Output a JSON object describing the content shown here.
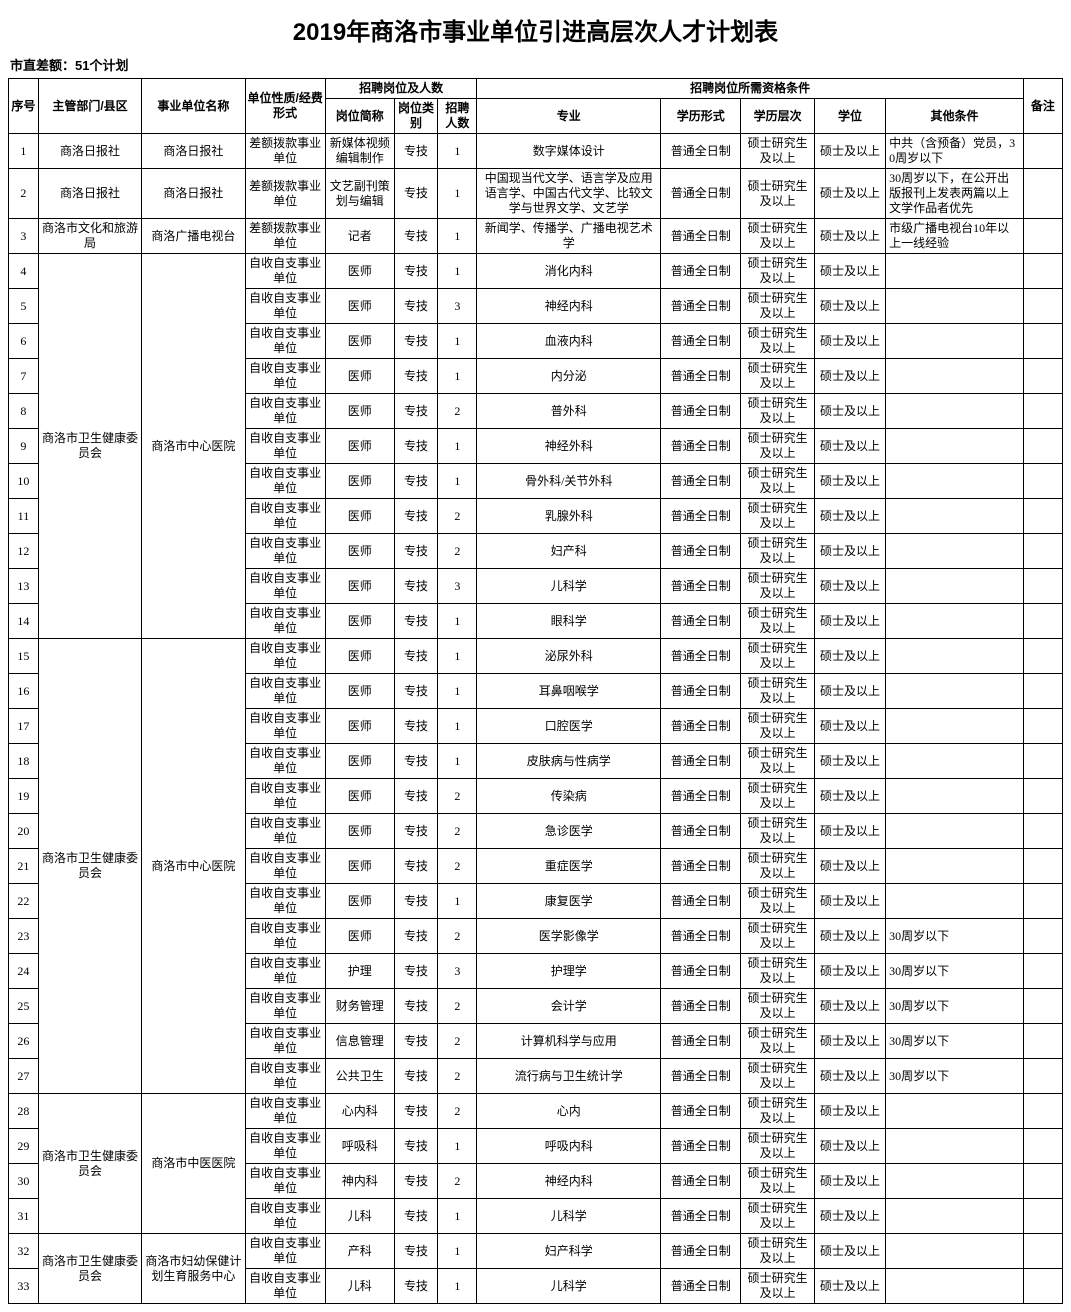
{
  "title": "2019年商洛市事业单位引进高层次人才计划表",
  "subtitle": "市直差额：51个计划",
  "headers": {
    "seq": "序号",
    "dept": "主管部门/县区",
    "org": "事业单位名称",
    "nature": "单位性质/经费形式",
    "pos_group": "招聘岗位及人数",
    "pos_name": "岗位简称",
    "pos_type": "岗位类别",
    "count": "招聘人数",
    "req_group": "招聘岗位所需资格条件",
    "major": "专业",
    "edu_form": "学历形式",
    "edu_level": "学历层次",
    "degree": "学位",
    "other": "其他条件",
    "note": "备注"
  },
  "groups": [
    {
      "dept": "商洛日报社",
      "org": "商洛日报社",
      "rows": [
        {
          "seq": 1,
          "nature": "差额拨款事业单位",
          "pos": "新媒体视频编辑制作",
          "ptype": "专技",
          "count": 1,
          "major": "数字媒体设计",
          "form": "普通全日制",
          "level": "硕士研究生及以上",
          "degree": "硕士及以上",
          "other": "中共（含预备）党员，30周岁以下"
        }
      ]
    },
    {
      "dept": "商洛日报社",
      "org": "商洛日报社",
      "rows": [
        {
          "seq": 2,
          "nature": "差额拨款事业单位",
          "pos": "文艺副刊策划与编辑",
          "ptype": "专技",
          "count": 1,
          "major": "中国现当代文学、语言学及应用语言学、中国古代文学、比较文学与世界文学、文艺学",
          "form": "普通全日制",
          "level": "硕士研究生及以上",
          "degree": "硕士及以上",
          "other": "30周岁以下，在公开出版报刊上发表两篇以上文学作品者优先"
        }
      ]
    },
    {
      "dept": "商洛市文化和旅游局",
      "org": "商洛广播电视台",
      "rows": [
        {
          "seq": 3,
          "nature": "差额拨款事业单位",
          "pos": "记者",
          "ptype": "专技",
          "count": 1,
          "major": "新闻学、传播学、广播电视艺术学",
          "form": "普通全日制",
          "level": "硕士研究生及以上",
          "degree": "硕士及以上",
          "other": "市级广播电视台10年以上一线经验"
        }
      ]
    },
    {
      "dept": "商洛市卫生健康委员会",
      "org": "商洛市中心医院",
      "rows": [
        {
          "seq": 4,
          "nature": "自收自支事业单位",
          "pos": "医师",
          "ptype": "专技",
          "count": 1,
          "major": "消化内科",
          "form": "普通全日制",
          "level": "硕士研究生及以上",
          "degree": "硕士及以上",
          "other": ""
        },
        {
          "seq": 5,
          "nature": "自收自支事业单位",
          "pos": "医师",
          "ptype": "专技",
          "count": 3,
          "major": "神经内科",
          "form": "普通全日制",
          "level": "硕士研究生及以上",
          "degree": "硕士及以上",
          "other": ""
        },
        {
          "seq": 6,
          "nature": "自收自支事业单位",
          "pos": "医师",
          "ptype": "专技",
          "count": 1,
          "major": "血液内科",
          "form": "普通全日制",
          "level": "硕士研究生及以上",
          "degree": "硕士及以上",
          "other": ""
        },
        {
          "seq": 7,
          "nature": "自收自支事业单位",
          "pos": "医师",
          "ptype": "专技",
          "count": 1,
          "major": "内分泌",
          "form": "普通全日制",
          "level": "硕士研究生及以上",
          "degree": "硕士及以上",
          "other": ""
        },
        {
          "seq": 8,
          "nature": "自收自支事业单位",
          "pos": "医师",
          "ptype": "专技",
          "count": 2,
          "major": "普外科",
          "form": "普通全日制",
          "level": "硕士研究生及以上",
          "degree": "硕士及以上",
          "other": ""
        },
        {
          "seq": 9,
          "nature": "自收自支事业单位",
          "pos": "医师",
          "ptype": "专技",
          "count": 1,
          "major": "神经外科",
          "form": "普通全日制",
          "level": "硕士研究生及以上",
          "degree": "硕士及以上",
          "other": ""
        },
        {
          "seq": 10,
          "nature": "自收自支事业单位",
          "pos": "医师",
          "ptype": "专技",
          "count": 1,
          "major": "骨外科/关节外科",
          "form": "普通全日制",
          "level": "硕士研究生及以上",
          "degree": "硕士及以上",
          "other": ""
        },
        {
          "seq": 11,
          "nature": "自收自支事业单位",
          "pos": "医师",
          "ptype": "专技",
          "count": 2,
          "major": "乳腺外科",
          "form": "普通全日制",
          "level": "硕士研究生及以上",
          "degree": "硕士及以上",
          "other": ""
        },
        {
          "seq": 12,
          "nature": "自收自支事业单位",
          "pos": "医师",
          "ptype": "专技",
          "count": 2,
          "major": "妇产科",
          "form": "普通全日制",
          "level": "硕士研究生及以上",
          "degree": "硕士及以上",
          "other": ""
        },
        {
          "seq": 13,
          "nature": "自收自支事业单位",
          "pos": "医师",
          "ptype": "专技",
          "count": 3,
          "major": "儿科学",
          "form": "普通全日制",
          "level": "硕士研究生及以上",
          "degree": "硕士及以上",
          "other": ""
        },
        {
          "seq": 14,
          "nature": "自收自支事业单位",
          "pos": "医师",
          "ptype": "专技",
          "count": 1,
          "major": "眼科学",
          "form": "普通全日制",
          "level": "硕士研究生及以上",
          "degree": "硕士及以上",
          "other": ""
        }
      ]
    },
    {
      "dept": "商洛市卫生健康委员会",
      "org": "商洛市中心医院",
      "rows": [
        {
          "seq": 15,
          "nature": "自收自支事业单位",
          "pos": "医师",
          "ptype": "专技",
          "count": 1,
          "major": "泌尿外科",
          "form": "普通全日制",
          "level": "硕士研究生及以上",
          "degree": "硕士及以上",
          "other": ""
        },
        {
          "seq": 16,
          "nature": "自收自支事业单位",
          "pos": "医师",
          "ptype": "专技",
          "count": 1,
          "major": "耳鼻咽喉学",
          "form": "普通全日制",
          "level": "硕士研究生及以上",
          "degree": "硕士及以上",
          "other": ""
        },
        {
          "seq": 17,
          "nature": "自收自支事业单位",
          "pos": "医师",
          "ptype": "专技",
          "count": 1,
          "major": "口腔医学",
          "form": "普通全日制",
          "level": "硕士研究生及以上",
          "degree": "硕士及以上",
          "other": ""
        },
        {
          "seq": 18,
          "nature": "自收自支事业单位",
          "pos": "医师",
          "ptype": "专技",
          "count": 1,
          "major": "皮肤病与性病学",
          "form": "普通全日制",
          "level": "硕士研究生及以上",
          "degree": "硕士及以上",
          "other": ""
        },
        {
          "seq": 19,
          "nature": "自收自支事业单位",
          "pos": "医师",
          "ptype": "专技",
          "count": 2,
          "major": "传染病",
          "form": "普通全日制",
          "level": "硕士研究生及以上",
          "degree": "硕士及以上",
          "other": ""
        },
        {
          "seq": 20,
          "nature": "自收自支事业单位",
          "pos": "医师",
          "ptype": "专技",
          "count": 2,
          "major": "急诊医学",
          "form": "普通全日制",
          "level": "硕士研究生及以上",
          "degree": "硕士及以上",
          "other": ""
        },
        {
          "seq": 21,
          "nature": "自收自支事业单位",
          "pos": "医师",
          "ptype": "专技",
          "count": 2,
          "major": "重症医学",
          "form": "普通全日制",
          "level": "硕士研究生及以上",
          "degree": "硕士及以上",
          "other": ""
        },
        {
          "seq": 22,
          "nature": "自收自支事业单位",
          "pos": "医师",
          "ptype": "专技",
          "count": 1,
          "major": "康复医学",
          "form": "普通全日制",
          "level": "硕士研究生及以上",
          "degree": "硕士及以上",
          "other": ""
        },
        {
          "seq": 23,
          "nature": "自收自支事业单位",
          "pos": "医师",
          "ptype": "专技",
          "count": 2,
          "major": "医学影像学",
          "form": "普通全日制",
          "level": "硕士研究生及以上",
          "degree": "硕士及以上",
          "other": "30周岁以下"
        },
        {
          "seq": 24,
          "nature": "自收自支事业单位",
          "pos": "护理",
          "ptype": "专技",
          "count": 3,
          "major": "护理学",
          "form": "普通全日制",
          "level": "硕士研究生及以上",
          "degree": "硕士及以上",
          "other": "30周岁以下"
        },
        {
          "seq": 25,
          "nature": "自收自支事业单位",
          "pos": "财务管理",
          "ptype": "专技",
          "count": 2,
          "major": "会计学",
          "form": "普通全日制",
          "level": "硕士研究生及以上",
          "degree": "硕士及以上",
          "other": "30周岁以下"
        },
        {
          "seq": 26,
          "nature": "自收自支事业单位",
          "pos": "信息管理",
          "ptype": "专技",
          "count": 2,
          "major": "计算机科学与应用",
          "form": "普通全日制",
          "level": "硕士研究生及以上",
          "degree": "硕士及以上",
          "other": "30周岁以下"
        },
        {
          "seq": 27,
          "nature": "自收自支事业单位",
          "pos": "公共卫生",
          "ptype": "专技",
          "count": 2,
          "major": "流行病与卫生统计学",
          "form": "普通全日制",
          "level": "硕士研究生及以上",
          "degree": "硕士及以上",
          "other": "30周岁以下"
        }
      ]
    },
    {
      "dept": "商洛市卫生健康委员会",
      "org": "商洛市中医医院",
      "rows": [
        {
          "seq": 28,
          "nature": "自收自支事业单位",
          "pos": "心内科",
          "ptype": "专技",
          "count": 2,
          "major": "心内",
          "form": "普通全日制",
          "level": "硕士研究生及以上",
          "degree": "硕士及以上",
          "other": ""
        },
        {
          "seq": 29,
          "nature": "自收自支事业单位",
          "pos": "呼吸科",
          "ptype": "专技",
          "count": 1,
          "major": "呼吸内科",
          "form": "普通全日制",
          "level": "硕士研究生及以上",
          "degree": "硕士及以上",
          "other": ""
        },
        {
          "seq": 30,
          "nature": "自收自支事业单位",
          "pos": "神内科",
          "ptype": "专技",
          "count": 2,
          "major": "神经内科",
          "form": "普通全日制",
          "level": "硕士研究生及以上",
          "degree": "硕士及以上",
          "other": ""
        },
        {
          "seq": 31,
          "nature": "自收自支事业单位",
          "pos": "儿科",
          "ptype": "专技",
          "count": 1,
          "major": "儿科学",
          "form": "普通全日制",
          "level": "硕士研究生及以上",
          "degree": "硕士及以上",
          "other": ""
        }
      ]
    },
    {
      "dept": "商洛市卫生健康委员会",
      "org": "商洛市妇幼保健计划生育服务中心",
      "rows": [
        {
          "seq": 32,
          "nature": "自收自支事业单位",
          "pos": "产科",
          "ptype": "专技",
          "count": 1,
          "major": "妇产科学",
          "form": "普通全日制",
          "level": "硕士研究生及以上",
          "degree": "硕士及以上",
          "other": ""
        },
        {
          "seq": 33,
          "nature": "自收自支事业单位",
          "pos": "儿科",
          "ptype": "专技",
          "count": 1,
          "major": "儿科学",
          "form": "普通全日制",
          "level": "硕士研究生及以上",
          "degree": "硕士及以上",
          "other": ""
        }
      ]
    }
  ]
}
